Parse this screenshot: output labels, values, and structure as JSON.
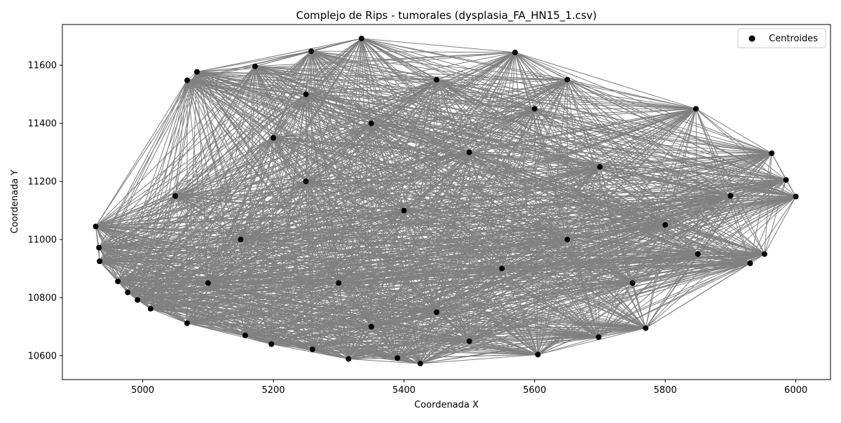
{
  "chart_data": {
    "type": "scatter",
    "title": "Complejo de Rips - tumorales (dysplasia_FA_HN15_1.csv)",
    "xlabel": "Coordenada X",
    "ylabel": "Coordenada Y",
    "xlim": [
      4877,
      6053
    ],
    "ylim": [
      10518,
      11740
    ],
    "xticks": [
      5000,
      5200,
      5400,
      5600,
      5800,
      6000
    ],
    "yticks": [
      10600,
      10800,
      11000,
      11200,
      11400,
      11600
    ],
    "legend": {
      "position": "top-right",
      "entries": [
        "Centroides"
      ]
    },
    "grid": false,
    "edge_color": "#808080",
    "point_color": "#000000",
    "series": [
      {
        "name": "Centroides",
        "points": [
          [
            5335,
            11692
          ],
          [
            5570,
            11644
          ],
          [
            5258,
            11648
          ],
          [
            5172,
            11596
          ],
          [
            5083,
            11577
          ],
          [
            5068,
            11548
          ],
          [
            5847,
            11450
          ],
          [
            5963,
            11297
          ],
          [
            5985,
            11205
          ],
          [
            6000,
            11148
          ],
          [
            5952,
            10950
          ],
          [
            5930,
            10918
          ],
          [
            5770,
            10695
          ],
          [
            5698,
            10664
          ],
          [
            5605,
            10604
          ],
          [
            5425,
            10573
          ],
          [
            5390,
            10592
          ],
          [
            5315,
            10589
          ],
          [
            5260,
            10622
          ],
          [
            5197,
            10640
          ],
          [
            5157,
            10670
          ],
          [
            5068,
            10712
          ],
          [
            5012,
            10762
          ],
          [
            4992,
            10792
          ],
          [
            4977,
            10818
          ],
          [
            4962,
            10856
          ],
          [
            4934,
            10925
          ],
          [
            4933,
            10972
          ],
          [
            4928,
            11045
          ],
          [
            5250,
            11200
          ],
          [
            5400,
            11100
          ],
          [
            5500,
            11300
          ],
          [
            5650,
            11000
          ],
          [
            5300,
            10850
          ],
          [
            5450,
            10750
          ],
          [
            5700,
            11250
          ],
          [
            5150,
            11000
          ],
          [
            5550,
            10900
          ],
          [
            5350,
            11400
          ],
          [
            5800,
            11050
          ],
          [
            5100,
            10850
          ],
          [
            5600,
            11450
          ],
          [
            5450,
            11550
          ],
          [
            5200,
            11350
          ],
          [
            5750,
            10850
          ],
          [
            5050,
            11150
          ],
          [
            5500,
            10650
          ],
          [
            5350,
            10700
          ],
          [
            5900,
            11150
          ],
          [
            5650,
            11550
          ],
          [
            5250,
            11500
          ],
          [
            5850,
            10950
          ]
        ]
      }
    ]
  }
}
